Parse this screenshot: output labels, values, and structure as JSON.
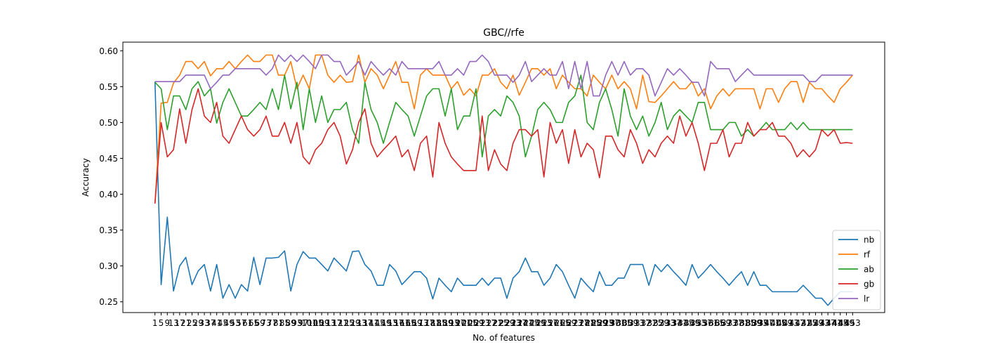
{
  "chart_data": {
    "type": "line",
    "title": "GBC//rfe",
    "xlabel": "No. of features",
    "ylabel": "Accuracy",
    "ylim": [
      0.235,
      0.612
    ],
    "yticks": [
      0.25,
      0.3,
      0.35,
      0.4,
      0.45,
      0.5,
      0.55,
      0.6
    ],
    "ytick_labels": [
      "0.25",
      "0.30",
      "0.35",
      "0.40",
      "0.45",
      "0.50",
      "0.55",
      "0.60"
    ],
    "grid": false,
    "legend_position": "lower-right",
    "x": [
      1,
      5,
      9,
      13,
      17,
      21,
      25,
      29,
      33,
      37,
      41,
      45,
      49,
      53,
      57,
      61,
      65,
      69,
      73,
      77,
      81,
      85,
      89,
      93,
      97,
      101,
      105,
      109,
      113,
      117,
      121,
      125,
      129,
      133,
      137,
      141,
      145,
      149,
      153,
      157,
      161,
      165,
      169,
      173,
      177,
      181,
      185,
      189,
      193,
      197,
      201,
      205,
      209,
      213,
      217,
      221,
      225,
      229,
      233,
      237,
      241,
      245,
      249,
      253,
      257,
      261,
      265,
      269,
      273,
      277,
      281,
      285,
      289,
      293,
      297,
      301,
      305,
      309,
      313,
      317,
      321,
      325,
      329,
      333,
      337,
      341,
      345,
      349,
      353,
      357,
      361,
      365,
      369,
      373,
      377,
      381,
      385,
      389,
      393,
      397,
      401,
      405,
      409,
      413,
      417,
      421,
      425,
      429,
      433,
      437,
      441,
      445,
      449,
      453
    ],
    "xtick_labels": [
      "1",
      "5",
      "9",
      "13",
      "17",
      "21",
      "25",
      "29",
      "33",
      "37",
      "41",
      "45",
      "49",
      "53",
      "57",
      "61",
      "65",
      "69",
      "73",
      "77",
      "81",
      "85",
      "89",
      "93",
      "97",
      "101",
      "105",
      "109",
      "113",
      "117",
      "121",
      "125",
      "129",
      "133",
      "137",
      "141",
      "145",
      "149",
      "153",
      "157",
      "161",
      "165",
      "169",
      "173",
      "177",
      "181",
      "185",
      "189",
      "193",
      "197",
      "201",
      "205",
      "209",
      "213",
      "217",
      "221",
      "225",
      "229",
      "233",
      "237",
      "241",
      "245",
      "249",
      "253",
      "257",
      "261",
      "265",
      "269",
      "273",
      "277",
      "281",
      "285",
      "289",
      "293",
      "297",
      "301",
      "305",
      "309",
      "313",
      "317",
      "321",
      "325",
      "329",
      "333",
      "337",
      "341",
      "345",
      "349",
      "353",
      "357",
      "361",
      "365",
      "369",
      "373",
      "377",
      "381",
      "385",
      "389",
      "393",
      "397",
      "401",
      "405",
      "409",
      "413",
      "417",
      "421",
      "425",
      "429",
      "433",
      "437",
      "441",
      "445",
      "449",
      "453"
    ],
    "series": [
      {
        "name": "nb",
        "color": "#1f77b4",
        "values": [
          0.557,
          0.274,
          0.368,
          0.265,
          0.3,
          0.312,
          0.274,
          0.293,
          0.302,
          0.265,
          0.302,
          0.255,
          0.274,
          0.255,
          0.274,
          0.265,
          0.312,
          0.274,
          0.311,
          0.311,
          0.312,
          0.321,
          0.265,
          0.302,
          0.32,
          0.311,
          0.311,
          0.302,
          0.293,
          0.311,
          0.302,
          0.293,
          0.32,
          0.321,
          0.302,
          0.293,
          0.273,
          0.273,
          0.302,
          0.293,
          0.274,
          0.283,
          0.292,
          0.292,
          0.283,
          0.254,
          0.283,
          0.273,
          0.264,
          0.283,
          0.273,
          0.273,
          0.273,
          0.283,
          0.273,
          0.283,
          0.283,
          0.255,
          0.283,
          0.292,
          0.311,
          0.292,
          0.292,
          0.273,
          0.283,
          0.302,
          0.292,
          0.273,
          0.255,
          0.283,
          0.273,
          0.264,
          0.292,
          0.273,
          0.273,
          0.283,
          0.283,
          0.302,
          0.302,
          0.302,
          0.273,
          0.302,
          0.292,
          0.302,
          0.292,
          0.283,
          0.273,
          0.302,
          0.283,
          0.292,
          0.302,
          0.292,
          0.283,
          0.273,
          0.283,
          0.292,
          0.273,
          0.292,
          0.273,
          0.273,
          0.264,
          0.264,
          0.264,
          0.264,
          0.264,
          0.273,
          0.264,
          0.255,
          0.255,
          0.245,
          0.255,
          0.264,
          0.264,
          0.264
        ]
      },
      {
        "name": "rf",
        "color": "#ff7f0e",
        "values": [
          0.387,
          0.527,
          0.528,
          0.555,
          0.566,
          0.585,
          0.585,
          0.575,
          0.585,
          0.565,
          0.575,
          0.575,
          0.585,
          0.575,
          0.585,
          0.594,
          0.585,
          0.585,
          0.594,
          0.594,
          0.566,
          0.566,
          0.585,
          0.547,
          0.566,
          0.547,
          0.594,
          0.594,
          0.566,
          0.556,
          0.566,
          0.556,
          0.557,
          0.594,
          0.556,
          0.575,
          0.566,
          0.547,
          0.566,
          0.585,
          0.556,
          0.556,
          0.519,
          0.566,
          0.575,
          0.566,
          0.566,
          0.566,
          0.547,
          0.557,
          0.538,
          0.547,
          0.537,
          0.566,
          0.566,
          0.575,
          0.556,
          0.547,
          0.566,
          0.538,
          0.556,
          0.575,
          0.575,
          0.566,
          0.575,
          0.547,
          0.566,
          0.556,
          0.547,
          0.547,
          0.537,
          0.566,
          0.556,
          0.547,
          0.566,
          0.547,
          0.557,
          0.547,
          0.519,
          0.566,
          0.529,
          0.528,
          0.537,
          0.547,
          0.557,
          0.547,
          0.547,
          0.557,
          0.537,
          0.547,
          0.519,
          0.537,
          0.547,
          0.537,
          0.547,
          0.547,
          0.547,
          0.547,
          0.519,
          0.547,
          0.547,
          0.528,
          0.547,
          0.557,
          0.557,
          0.528,
          0.556,
          0.547,
          0.547,
          0.537,
          0.528,
          0.547,
          0.556,
          0.566
        ]
      },
      {
        "name": "ab",
        "color": "#2ca02c",
        "values": [
          0.556,
          0.547,
          0.49,
          0.537,
          0.537,
          0.518,
          0.547,
          0.557,
          0.537,
          0.547,
          0.499,
          0.528,
          0.547,
          0.528,
          0.509,
          0.509,
          0.518,
          0.528,
          0.518,
          0.547,
          0.518,
          0.566,
          0.519,
          0.556,
          0.49,
          0.547,
          0.5,
          0.537,
          0.5,
          0.518,
          0.518,
          0.528,
          0.49,
          0.471,
          0.556,
          0.518,
          0.5,
          0.471,
          0.5,
          0.528,
          0.518,
          0.509,
          0.481,
          0.509,
          0.537,
          0.547,
          0.547,
          0.509,
          0.547,
          0.49,
          0.509,
          0.509,
          0.547,
          0.452,
          0.509,
          0.518,
          0.509,
          0.537,
          0.528,
          0.509,
          0.452,
          0.481,
          0.518,
          0.528,
          0.518,
          0.5,
          0.5,
          0.528,
          0.537,
          0.566,
          0.5,
          0.49,
          0.528,
          0.547,
          0.518,
          0.481,
          0.547,
          0.509,
          0.49,
          0.509,
          0.481,
          0.5,
          0.528,
          0.49,
          0.509,
          0.518,
          0.509,
          0.5,
          0.528,
          0.528,
          0.49,
          0.49,
          0.49,
          0.5,
          0.5,
          0.481,
          0.49,
          0.481,
          0.49,
          0.5,
          0.49,
          0.49,
          0.49,
          0.5,
          0.49,
          0.5,
          0.49,
          0.49,
          0.49,
          0.49,
          0.49,
          0.49,
          0.49,
          0.49
        ]
      },
      {
        "name": "gb",
        "color": "#d62728",
        "values": [
          0.387,
          0.5,
          0.452,
          0.462,
          0.519,
          0.471,
          0.518,
          0.547,
          0.509,
          0.5,
          0.528,
          0.481,
          0.471,
          0.49,
          0.509,
          0.49,
          0.481,
          0.49,
          0.509,
          0.481,
          0.481,
          0.5,
          0.471,
          0.5,
          0.452,
          0.442,
          0.462,
          0.471,
          0.49,
          0.5,
          0.481,
          0.442,
          0.462,
          0.5,
          0.519,
          0.471,
          0.452,
          0.462,
          0.471,
          0.481,
          0.452,
          0.462,
          0.433,
          0.471,
          0.481,
          0.424,
          0.5,
          0.471,
          0.452,
          0.442,
          0.433,
          0.433,
          0.433,
          0.509,
          0.433,
          0.462,
          0.442,
          0.433,
          0.471,
          0.49,
          0.49,
          0.481,
          0.49,
          0.424,
          0.5,
          0.471,
          0.49,
          0.443,
          0.49,
          0.452,
          0.471,
          0.462,
          0.423,
          0.481,
          0.481,
          0.462,
          0.452,
          0.49,
          0.471,
          0.443,
          0.462,
          0.452,
          0.471,
          0.481,
          0.471,
          0.509,
          0.481,
          0.5,
          0.471,
          0.433,
          0.471,
          0.471,
          0.49,
          0.452,
          0.471,
          0.471,
          0.5,
          0.481,
          0.49,
          0.49,
          0.5,
          0.481,
          0.481,
          0.471,
          0.452,
          0.462,
          0.452,
          0.462,
          0.49,
          0.481,
          0.49,
          0.471,
          0.472,
          0.471
        ]
      },
      {
        "name": "lr",
        "color": "#9467bd",
        "values": [
          0.557,
          0.557,
          0.557,
          0.557,
          0.557,
          0.566,
          0.566,
          0.566,
          0.566,
          0.547,
          0.556,
          0.566,
          0.566,
          0.575,
          0.575,
          0.575,
          0.575,
          0.575,
          0.566,
          0.575,
          0.594,
          0.585,
          0.594,
          0.585,
          0.594,
          0.585,
          0.575,
          0.594,
          0.594,
          0.585,
          0.585,
          0.566,
          0.575,
          0.585,
          0.566,
          0.585,
          0.575,
          0.566,
          0.575,
          0.566,
          0.585,
          0.575,
          0.575,
          0.575,
          0.575,
          0.575,
          0.585,
          0.566,
          0.566,
          0.575,
          0.566,
          0.585,
          0.585,
          0.594,
          0.585,
          0.566,
          0.566,
          0.566,
          0.556,
          0.566,
          0.585,
          0.557,
          0.566,
          0.575,
          0.566,
          0.566,
          0.585,
          0.547,
          0.585,
          0.547,
          0.585,
          0.537,
          0.537,
          0.566,
          0.585,
          0.566,
          0.585,
          0.566,
          0.575,
          0.575,
          0.566,
          0.537,
          0.556,
          0.575,
          0.566,
          0.575,
          0.566,
          0.556,
          0.556,
          0.537,
          0.585,
          0.575,
          0.575,
          0.575,
          0.557,
          0.566,
          0.575,
          0.566,
          0.566,
          0.566,
          0.566,
          0.566,
          0.566,
          0.566,
          0.566,
          0.566,
          0.557,
          0.557,
          0.566,
          0.566,
          0.566,
          0.566,
          0.566,
          0.566
        ]
      }
    ]
  }
}
